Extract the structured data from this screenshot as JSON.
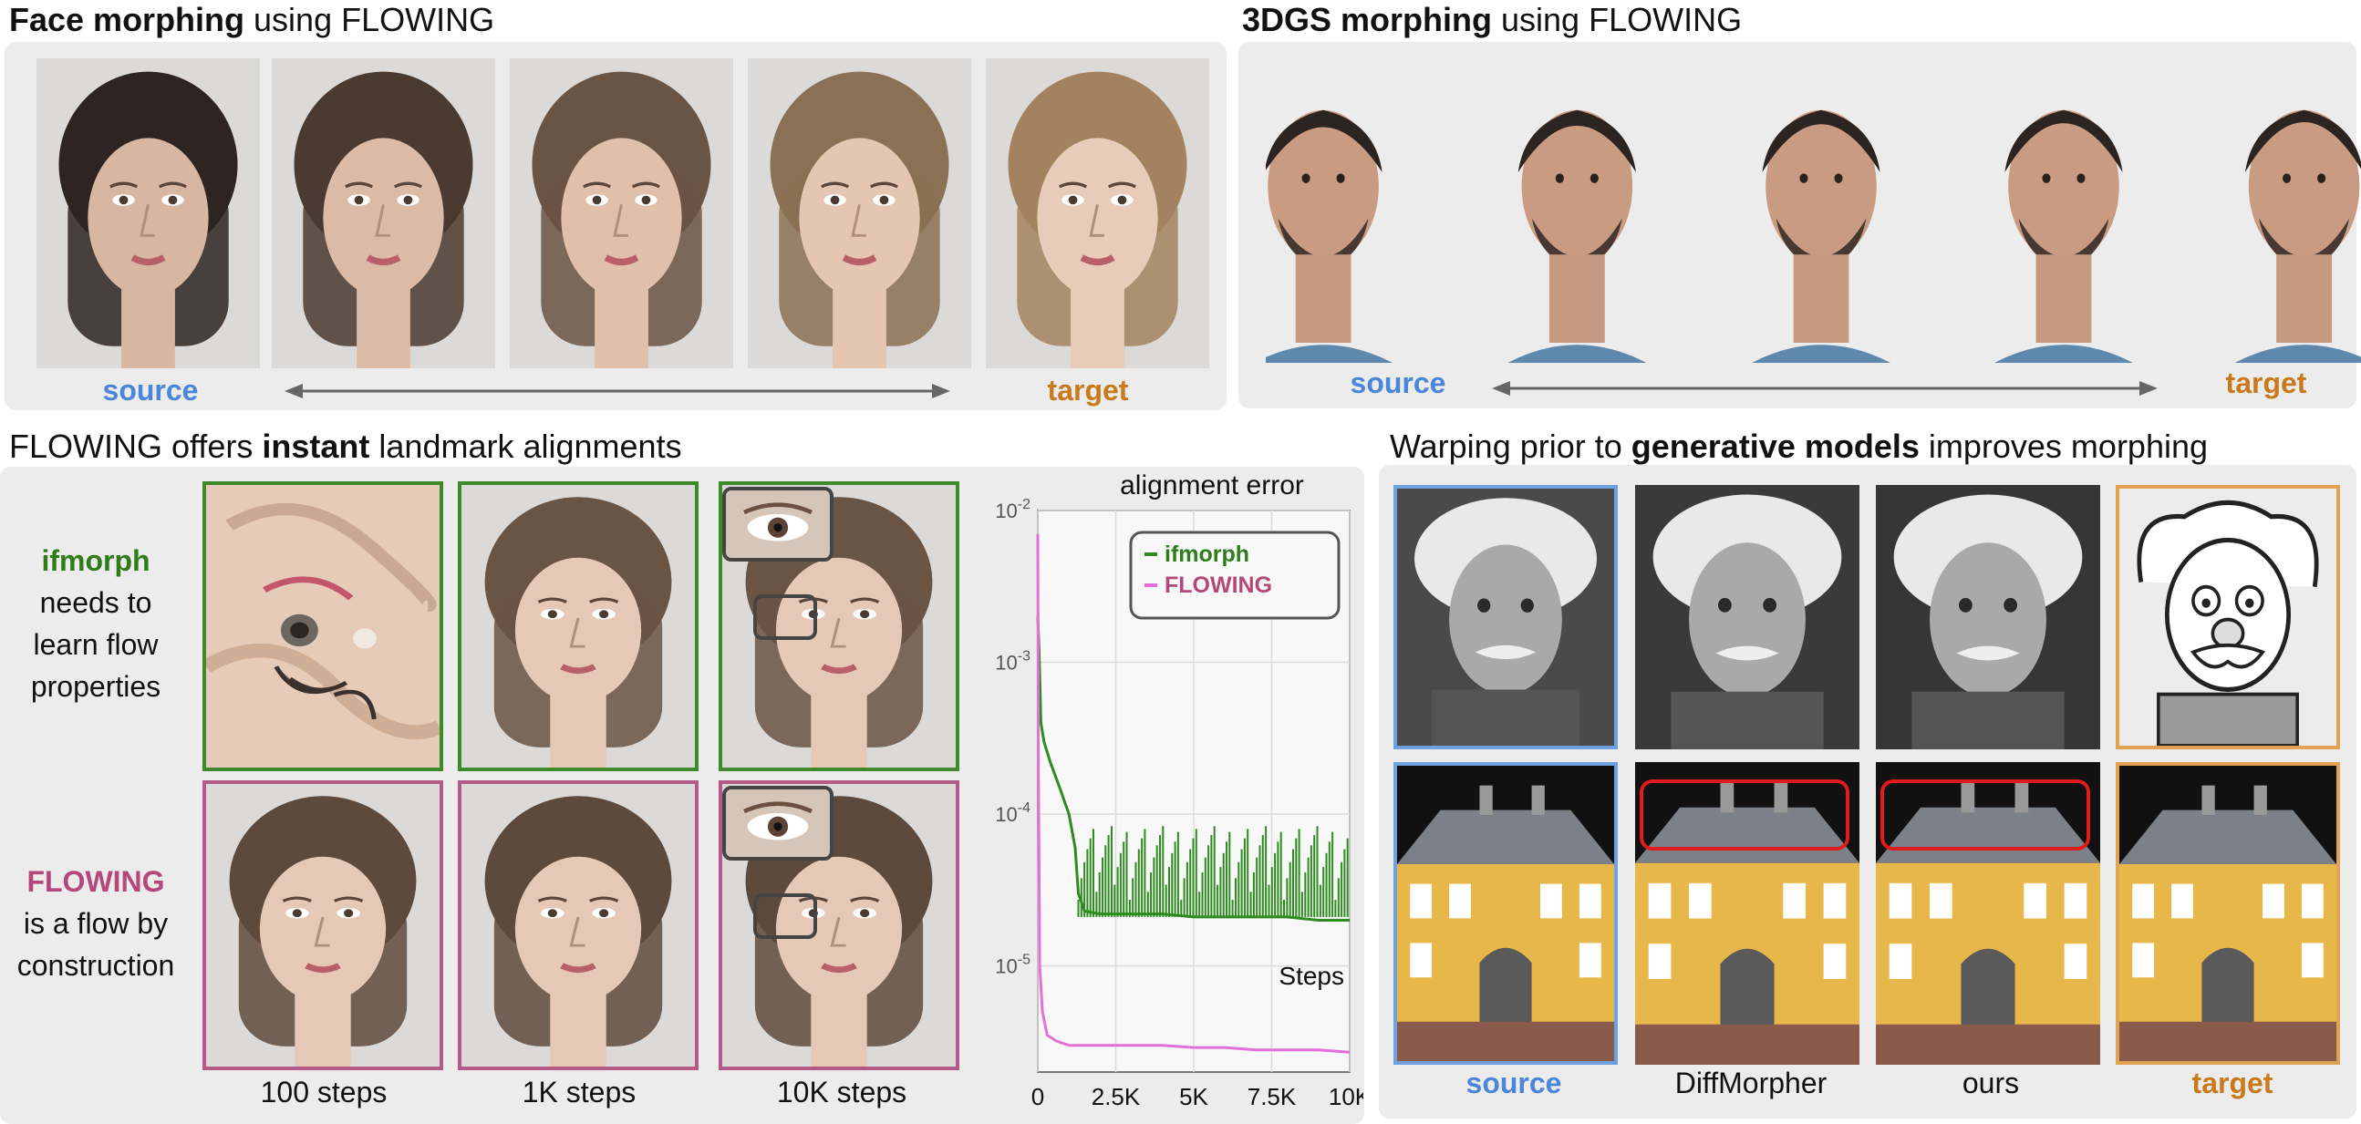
{
  "face_morph": {
    "title_bold": "Face morphing",
    "title_rest": " using FLOWING",
    "source_label": "source",
    "target_label": "target"
  },
  "dgs_morph": {
    "title_bold": "3DGS morphing",
    "title_rest": " using FLOWING",
    "source_label": "source",
    "target_label": "target"
  },
  "alignment": {
    "title_pre": "FLOWING offers ",
    "title_bold": "instant",
    "title_post": " landmark alignments",
    "row1_name": "ifmorph",
    "row1_desc": [
      "needs to",
      "learn flow",
      "properties"
    ],
    "row2_name": "FLOWING",
    "row2_desc": [
      "is a  flow by",
      "construction"
    ],
    "col_labels": [
      "100 steps",
      "1K steps",
      "10K steps"
    ]
  },
  "generative": {
    "title_pre": "Warping prior to ",
    "title_bold": "generative models",
    "title_post": " improves morphing",
    "col_labels": [
      "source",
      "DiffMorpher",
      "ours",
      "target"
    ]
  },
  "chart_data": {
    "type": "line",
    "title": "alignment error",
    "xlabel": "Steps",
    "ylabel": "",
    "x_ticks": [
      0,
      2500,
      5000,
      7500,
      10000
    ],
    "x_tick_labels": [
      "0",
      "2.5K",
      "5K",
      "7.5K",
      "10K"
    ],
    "y_scale": "log",
    "ylim": [
      2e-06,
      0.01
    ],
    "y_ticks": [
      0.01,
      0.001,
      0.0001,
      1e-05
    ],
    "y_tick_labels": [
      "10-2",
      "10-3",
      "10-4",
      "10-5"
    ],
    "xlim": [
      0,
      10000
    ],
    "grid": true,
    "legend_position": "top-right",
    "series": [
      {
        "name": "ifmorph",
        "color": "#2e8b1f",
        "x": [
          0,
          40,
          100,
          200,
          400,
          700,
          1000,
          1200,
          1300,
          1500,
          2000,
          3000,
          4000,
          5000,
          6000,
          7000,
          8000,
          9000,
          10000
        ],
        "y": [
          0.002,
          0.0012,
          0.0004,
          0.0003,
          0.00022,
          0.00015,
          0.0001,
          6e-05,
          3e-05,
          2.3e-05,
          2.2e-05,
          2.2e-05,
          2.2e-05,
          2.1e-05,
          2.1e-05,
          2.1e-05,
          2.1e-05,
          2e-05,
          2e-05
        ]
      },
      {
        "name": "FLOWING",
        "color": "#e36fd9",
        "x": [
          0,
          20,
          60,
          150,
          300,
          600,
          1000,
          2000,
          3000,
          4000,
          5000,
          6000,
          7000,
          8000,
          9000,
          10000
        ],
        "y": [
          0.007,
          0.0002,
          1e-05,
          5e-06,
          3.5e-06,
          3.2e-06,
          3e-06,
          3e-06,
          3e-06,
          3e-06,
          2.9e-06,
          2.9e-06,
          2.8e-06,
          2.8e-06,
          2.8e-06,
          2.7e-06
        ]
      }
    ]
  },
  "colors": {
    "panel_bg": "#ececec",
    "source_blue": "#4a86d9",
    "target_orange": "#c97a1c",
    "ifmorph_green": "#2e7d1a",
    "flowing_pink": "#b4487a"
  }
}
